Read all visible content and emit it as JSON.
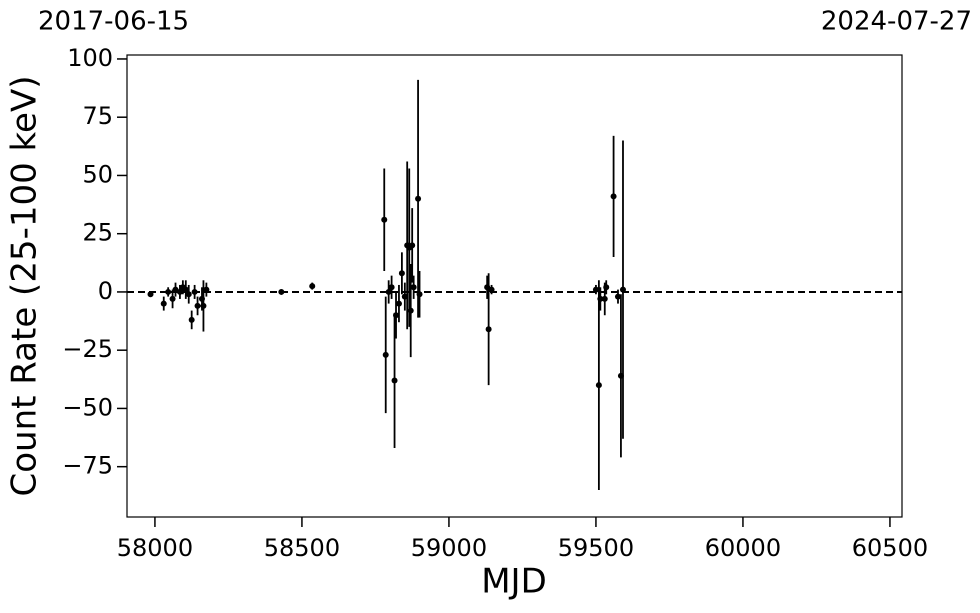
{
  "chart_data": {
    "type": "errorbar",
    "xlabel": "MJD",
    "ylabel": "Count Rate (25-100 keV)",
    "date_range": [
      "2017-06-15",
      "2024-07-27"
    ],
    "color": "#000000",
    "reference_line": 0,
    "x": [
      57985,
      58030,
      58045,
      58060,
      58070,
      58085,
      58095,
      58105,
      58115,
      58125,
      58135,
      58145,
      58160,
      58165,
      58175,
      58430,
      58535,
      58780,
      58785,
      58795,
      58805,
      58815,
      58820,
      58830,
      58840,
      58850,
      58858,
      58865,
      58870,
      58875,
      58880,
      58895,
      58900,
      59130,
      59135,
      59145,
      59500,
      59510,
      59515,
      59530,
      59535,
      59560,
      59575,
      59585,
      59592
    ],
    "values": [
      -1,
      -5,
      0,
      -3,
      1,
      0,
      2,
      1,
      -1,
      -12,
      0,
      -6,
      -3,
      -6,
      1,
      0,
      2.5,
      31,
      -27,
      0,
      2,
      -38,
      -10,
      -5,
      8,
      -2,
      20,
      19,
      -8,
      20,
      2,
      40,
      -1,
      2,
      -16,
      1,
      1,
      -40,
      -3,
      -3,
      2,
      41,
      -2,
      -36,
      1
    ],
    "errors": [
      1,
      3,
      2,
      4,
      3,
      3,
      3,
      4,
      4,
      4,
      3,
      4,
      5,
      11,
      3,
      1,
      1.5,
      22,
      25,
      5,
      5,
      29,
      10,
      8,
      9,
      6,
      36,
      34,
      20,
      16,
      5,
      51,
      10,
      5,
      24,
      2,
      2,
      45,
      5,
      7,
      3,
      26,
      3,
      35,
      64
    ],
    "xlim": [
      57905,
      60541
    ],
    "ylim": [
      -96.6,
      101.7
    ],
    "xticks": [
      58000,
      58500,
      59000,
      59500,
      60000,
      60500
    ],
    "yticks": [
      -75,
      -50,
      -25,
      0,
      25,
      50,
      75,
      100
    ]
  }
}
